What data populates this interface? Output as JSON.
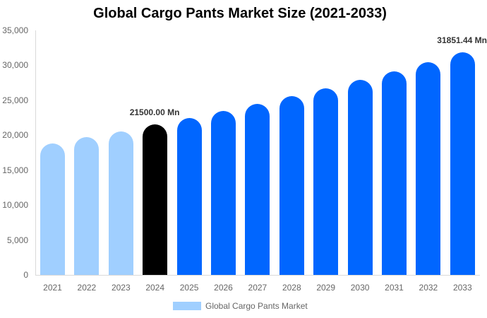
{
  "chart_data": {
    "type": "bar",
    "title": "Global Cargo Pants Market Size (2021-2033)",
    "xlabel": "",
    "ylabel": "",
    "ylim": [
      0,
      35000
    ],
    "yticks": [
      "0",
      "5,000",
      "10,000",
      "15,000",
      "20,000",
      "25,000",
      "30,000",
      "35,000"
    ],
    "categories": [
      "2021",
      "2022",
      "2023",
      "2024",
      "2025",
      "2026",
      "2027",
      "2028",
      "2029",
      "2030",
      "2031",
      "2032",
      "2033"
    ],
    "series": [
      {
        "name": "Global Cargo Pants Market",
        "values": [
          18861,
          19703,
          20582,
          21500,
          22459,
          23461,
          24507,
          25600,
          26742,
          27934,
          29180,
          30481,
          31851.44
        ]
      }
    ],
    "bar_colors": [
      "#a0cfff",
      "#a0cfff",
      "#a0cfff",
      "#000000",
      "#0066ff",
      "#0066ff",
      "#0066ff",
      "#0066ff",
      "#0066ff",
      "#0066ff",
      "#0066ff",
      "#0066ff",
      "#0066ff"
    ],
    "annotations": [
      {
        "category": "2024",
        "text": "21500.00 Mn"
      },
      {
        "category": "2033",
        "text": "31851.44 Mn"
      }
    ],
    "grid": false,
    "legend_position": "bottom"
  },
  "legend": {
    "label": "Global Cargo Pants Market",
    "color": "#a0cfff"
  }
}
